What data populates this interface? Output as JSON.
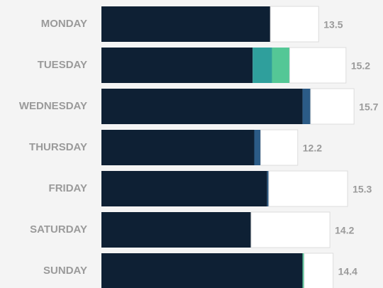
{
  "chart_data": {
    "type": "stacked-hbar",
    "categories": [
      "MONDAY",
      "TUESDAY",
      "WEDNESDAY",
      "THURSDAY",
      "FRIDAY",
      "SATURDAY",
      "SUNDAY"
    ],
    "series": [
      {
        "color": "#0e2034",
        "values": [
          10.5,
          9.4,
          12.5,
          9.5,
          10.3,
          9.3,
          12.5
        ]
      },
      {
        "color": "#2b5b86",
        "values": [
          0,
          0,
          0.5,
          0.4,
          0.1,
          0,
          0
        ]
      },
      {
        "color": "#2f9f9c",
        "values": [
          0,
          1.2,
          0,
          0,
          0,
          0,
          0
        ]
      },
      {
        "color": "#54c796",
        "values": [
          0,
          1.1,
          0,
          0,
          0,
          0,
          0.1
        ]
      },
      {
        "color": "#ffffff",
        "values": [
          3.0,
          3.5,
          2.7,
          2.3,
          4.9,
          4.9,
          1.8
        ]
      }
    ],
    "totals": [
      13.5,
      15.2,
      15.7,
      12.2,
      15.3,
      14.2,
      14.4
    ],
    "xlim": [
      0,
      17.5
    ]
  }
}
